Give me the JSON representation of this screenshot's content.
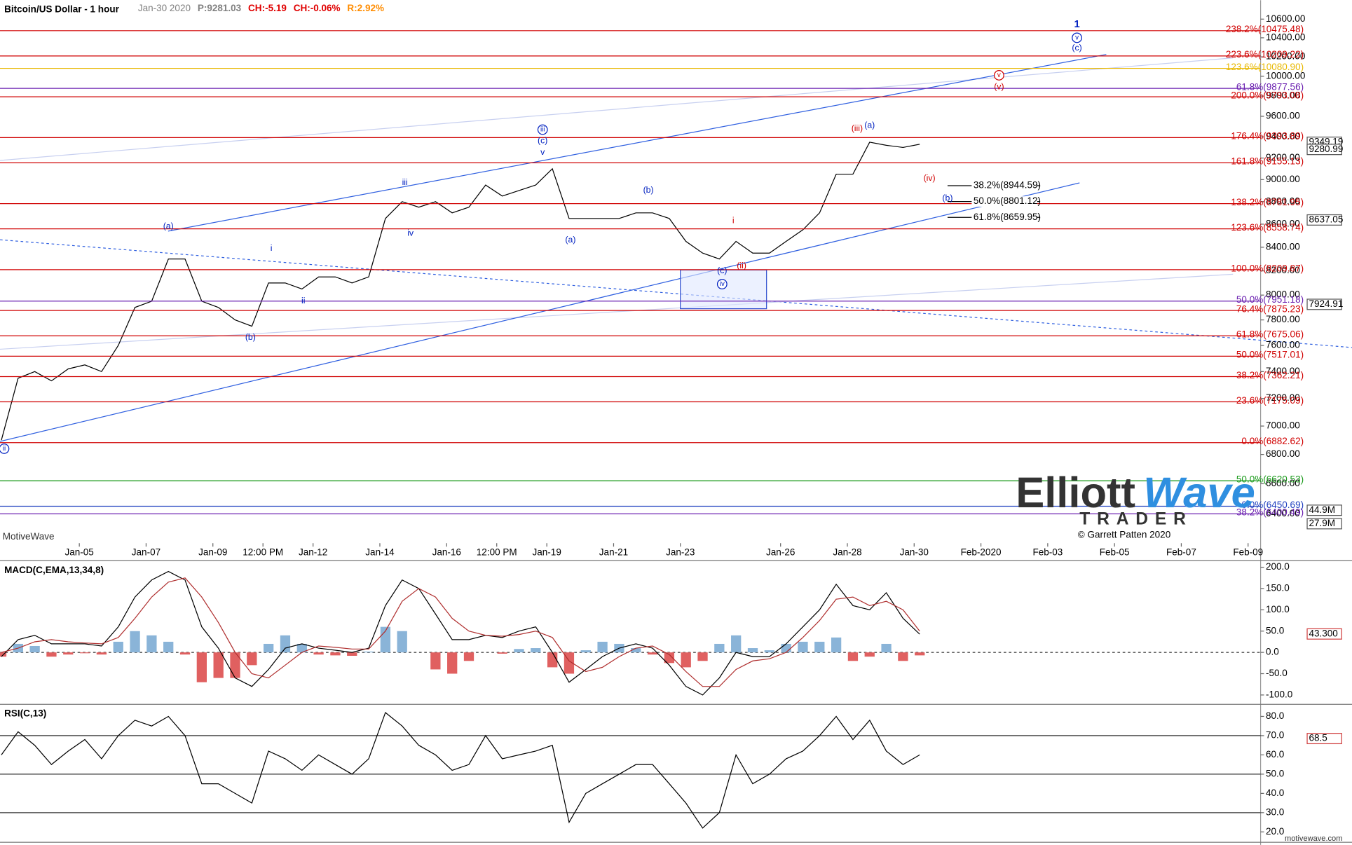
{
  "chart_data": [
    {
      "type": "line",
      "title": "Bitcoin/US Dollar - 1 hour",
      "info": [
        {
          "text": "Jan-30 2020",
          "color": "#808080"
        },
        {
          "text": "P:9281.03",
          "color": "#808080"
        },
        {
          "text": "CH:-5.19",
          "color": "#e00000"
        },
        {
          "text": "CH:-0.06%",
          "color": "#e00000"
        },
        {
          "text": "R:2.92%",
          "color": "#ff8c00"
        }
      ],
      "log_scale": true,
      "color": "#000000",
      "xlim": [
        "2020-01-02 15:00",
        "2020-02-09 09:00"
      ],
      "xticks": [
        {
          "value": "2020-01-05 00:00",
          "label": "Jan-05"
        },
        {
          "value": "2020-01-07 00:00",
          "label": "Jan-07"
        },
        {
          "value": "2020-01-09 00:00",
          "label": "Jan-09"
        },
        {
          "value": "2020-01-10 12:00",
          "label": "12:00 PM"
        },
        {
          "value": "2020-01-12 00:00",
          "label": "Jan-12"
        },
        {
          "value": "2020-01-14 00:00",
          "label": "Jan-14"
        },
        {
          "value": "2020-01-16 00:00",
          "label": "Jan-16"
        },
        {
          "value": "2020-01-17 12:00",
          "label": "12:00 PM"
        },
        {
          "value": "2020-01-19 00:00",
          "label": "Jan-19"
        },
        {
          "value": "2020-01-21 00:00",
          "label": "Jan-21"
        },
        {
          "value": "2020-01-23 00:00",
          "label": "Jan-23"
        },
        {
          "value": "2020-01-26 00:00",
          "label": "Jan-26"
        },
        {
          "value": "2020-01-28 00:00",
          "label": "Jan-28"
        },
        {
          "value": "2020-01-30 00:00",
          "label": "Jan-30"
        },
        {
          "value": "2020-02-01 00:00",
          "label": "Feb-2020"
        },
        {
          "value": "2020-02-03 00:00",
          "label": "Feb-03"
        },
        {
          "value": "2020-02-05 00:00",
          "label": "Feb-05"
        },
        {
          "value": "2020-02-07 00:00",
          "label": "Feb-07"
        },
        {
          "value": "2020-02-09 00:00",
          "label": "Feb-09"
        }
      ],
      "ylim": [
        6212,
        10675
      ],
      "yticks": [
        {
          "value": 6400,
          "label": "6400.00"
        },
        {
          "value": 6600,
          "label": "6600.00"
        },
        {
          "value": 6800,
          "label": "6800.00"
        },
        {
          "value": 7000,
          "label": "7000.00"
        },
        {
          "value": 7200,
          "label": "7200.00"
        },
        {
          "value": 7400,
          "label": "7400.00"
        },
        {
          "value": 7600,
          "label": "7600.00"
        },
        {
          "value": 7800,
          "label": "7800.00"
        },
        {
          "value": 8000,
          "label": "8000.00"
        },
        {
          "value": 8200,
          "label": "8200.00"
        },
        {
          "value": 8400,
          "label": "8400.00"
        },
        {
          "value": 8600,
          "label": "8600.00"
        },
        {
          "value": 8800,
          "label": "8800.00"
        },
        {
          "value": 9000,
          "label": "9000.00"
        },
        {
          "value": 9200,
          "label": "9200.00"
        },
        {
          "value": 9400,
          "label": "9400.00"
        },
        {
          "value": 9600,
          "label": "9600.00"
        },
        {
          "value": 9800,
          "label": "9800.00"
        },
        {
          "value": 10000,
          "label": "10000.00"
        },
        {
          "value": 10200,
          "label": "10200.00"
        },
        {
          "value": 10400,
          "label": "10400.00"
        },
        {
          "value": 10600,
          "label": "10600.00"
        }
      ],
      "x": [
        "2020-01-02 16:00",
        "2020-01-03 04:00",
        "2020-01-03 16:00",
        "2020-01-04 04:00",
        "2020-01-04 16:00",
        "2020-01-05 04:00",
        "2020-01-05 16:00",
        "2020-01-06 04:00",
        "2020-01-06 16:00",
        "2020-01-07 04:00",
        "2020-01-07 16:00",
        "2020-01-08 04:00",
        "2020-01-08 16:00",
        "2020-01-09 04:00",
        "2020-01-09 16:00",
        "2020-01-10 04:00",
        "2020-01-10 16:00",
        "2020-01-11 04:00",
        "2020-01-11 16:00",
        "2020-01-12 04:00",
        "2020-01-12 16:00",
        "2020-01-13 04:00",
        "2020-01-13 16:00",
        "2020-01-14 04:00",
        "2020-01-14 16:00",
        "2020-01-15 04:00",
        "2020-01-15 16:00",
        "2020-01-16 04:00",
        "2020-01-16 16:00",
        "2020-01-17 04:00",
        "2020-01-17 16:00",
        "2020-01-18 04:00",
        "2020-01-18 16:00",
        "2020-01-19 04:00",
        "2020-01-19 16:00",
        "2020-01-20 04:00",
        "2020-01-20 16:00",
        "2020-01-21 04:00",
        "2020-01-21 16:00",
        "2020-01-22 04:00",
        "2020-01-22 16:00",
        "2020-01-23 04:00",
        "2020-01-23 16:00",
        "2020-01-24 04:00",
        "2020-01-24 16:00",
        "2020-01-25 04:00",
        "2020-01-25 16:00",
        "2020-01-26 04:00",
        "2020-01-26 16:00",
        "2020-01-27 04:00",
        "2020-01-27 16:00",
        "2020-01-28 04:00",
        "2020-01-28 16:00",
        "2020-01-29 04:00",
        "2020-01-29 16:00",
        "2020-01-30 04:00"
      ],
      "values": [
        6900,
        7350,
        7400,
        7330,
        7420,
        7450,
        7400,
        7600,
        7900,
        7950,
        8300,
        8300,
        7950,
        7900,
        7800,
        7750,
        8100,
        8100,
        8050,
        8150,
        8150,
        8100,
        8150,
        8650,
        8800,
        8750,
        8800,
        8700,
        8750,
        8950,
        8850,
        8900,
        8950,
        9100,
        8650,
        8650,
        8650,
        8650,
        8700,
        8700,
        8650,
        8450,
        8350,
        8300,
        8450,
        8350,
        8350,
        8450,
        8550,
        8700,
        9050,
        9050,
        9350,
        9320,
        9300,
        9330
      ],
      "hlines": [
        {
          "value": 10475.48,
          "label": "238.2%(10475.48)",
          "color": "#d00000"
        },
        {
          "value": 10209.22,
          "label": "223.6%(10209.22)",
          "color": "#d00000"
        },
        {
          "value": 10080.9,
          "label": "123.6%(10080.90)",
          "color": "#e8b800"
        },
        {
          "value": 9877.56,
          "label": "61.8%(9877.56)",
          "color": "#6a1fb0"
        },
        {
          "value": 9793.08,
          "label": "200.0%(9793.08)",
          "color": "#d00000"
        },
        {
          "value": 9393.89,
          "label": "176.4%(9393.89)",
          "color": "#d00000"
        },
        {
          "value": 9155.13,
          "label": "161.8%(9155.13)",
          "color": "#d00000"
        },
        {
          "value": 8781.95,
          "label": "138.2%(8781.95)",
          "color": "#d00000"
        },
        {
          "value": 8558.74,
          "label": "123.6%(8558.74)",
          "color": "#d00000"
        },
        {
          "value": 8209.87,
          "label": "100.0%(8209.87)",
          "color": "#d00000"
        },
        {
          "value": 7951.18,
          "label": "50.0%(7951.18)",
          "color": "#6a1fb0"
        },
        {
          "value": 7875.23,
          "label": "76.4%(7875.23)",
          "color": "#d00000"
        },
        {
          "value": 7675.06,
          "label": "61.8%(7675.06)",
          "color": "#d00000"
        },
        {
          "value": 7517.01,
          "label": "50.0%(7517.01)",
          "color": "#d00000"
        },
        {
          "value": 7362.21,
          "label": "38.2%(7362.21)",
          "color": "#d00000"
        },
        {
          "value": 7175.09,
          "label": "23.6%(7175.09)",
          "color": "#d00000"
        },
        {
          "value": 6882.62,
          "label": "0.0%(6882.62)",
          "color": "#d00000"
        },
        {
          "value": 6620.53,
          "label": "50.0%(6620.53)",
          "color": "#1a9a1a"
        },
        {
          "value": 6450.69,
          "label": "0.0%(6450.69)",
          "color": "#2040c0"
        },
        {
          "value": 6400.49,
          "label": "38.2%(6400.49)",
          "color": "#6a1fb0"
        }
      ],
      "short_fibs": {
        "x": [
          "2020-01-31 00:00",
          "2020-02-02 18:00"
        ],
        "lines": [
          {
            "value": 8944.59,
            "label": "38.2%(8944.59)"
          },
          {
            "value": 8801.12,
            "label": "50.0%(8801.12)"
          },
          {
            "value": 8659.95,
            "label": "61.8%(8659.95)"
          }
        ]
      },
      "price_tags": [
        9349.19,
        9280.99,
        8637.05,
        7924.91
      ],
      "annotations": [
        {
          "text": "1",
          "x": "2020-02-03 21:00",
          "y": 10540,
          "color": "#0020c0",
          "bold": true
        },
        {
          "text": "v",
          "x": "2020-02-03 21:00",
          "y": 10400,
          "color": "#0020c0",
          "circled": true
        },
        {
          "text": "(c)",
          "x": "2020-02-03 21:00",
          "y": 10290,
          "color": "#0020c0"
        },
        {
          "text": "v",
          "x": "2020-02-01 13:00",
          "y": 10010,
          "color": "#d00000",
          "circled": true
        },
        {
          "text": "(v)",
          "x": "2020-02-01 13:00",
          "y": 9890,
          "color": "#d00000"
        },
        {
          "text": "(iii)",
          "x": "2020-01-28 07:00",
          "y": 9480,
          "color": "#d00000"
        },
        {
          "text": "(a)",
          "x": "2020-01-28 16:00",
          "y": 9510,
          "color": "#0020c0"
        },
        {
          "text": "(iv)",
          "x": "2020-01-30 11:00",
          "y": 9010,
          "color": "#d00000"
        },
        {
          "text": "(b)",
          "x": "2020-01-31 00:00",
          "y": 8830,
          "color": "#0020c0"
        },
        {
          "text": "iii",
          "x": "2020-01-18 21:00",
          "y": 9470,
          "color": "#0020c0",
          "circled": true
        },
        {
          "text": "(c)",
          "x": "2020-01-18 21:00",
          "y": 9360,
          "color": "#0020c0"
        },
        {
          "text": "v",
          "x": "2020-01-18 21:00",
          "y": 9250,
          "color": "#0020c0"
        },
        {
          "text": "iii",
          "x": "2020-01-14 18:00",
          "y": 8970,
          "color": "#0020c0"
        },
        {
          "text": "iv",
          "x": "2020-01-14 22:00",
          "y": 8520,
          "color": "#0020c0"
        },
        {
          "text": "(a)",
          "x": "2020-01-07 16:00",
          "y": 8580,
          "color": "#0020c0"
        },
        {
          "text": "i",
          "x": "2020-01-10 18:00",
          "y": 8390,
          "color": "#0020c0"
        },
        {
          "text": "ii",
          "x": "2020-01-11 17:00",
          "y": 7950,
          "color": "#0020c0"
        },
        {
          "text": "(b)",
          "x": "2020-01-10 03:00",
          "y": 7660,
          "color": "#0020c0"
        },
        {
          "text": "(b)",
          "x": "2020-01-22 01:00",
          "y": 8900,
          "color": "#0020c0"
        },
        {
          "text": "(a)",
          "x": "2020-01-19 17:00",
          "y": 8460,
          "color": "#0020c0"
        },
        {
          "text": "i",
          "x": "2020-01-24 14:00",
          "y": 8630,
          "color": "#d00000"
        },
        {
          "text": "(ii)",
          "x": "2020-01-24 20:00",
          "y": 8240,
          "color": "#d00000"
        },
        {
          "text": "(c)",
          "x": "2020-01-24 06:00",
          "y": 8200,
          "color": "#0020c0"
        },
        {
          "text": "iv",
          "x": "2020-01-24 06:00",
          "y": 8090,
          "color": "#0020c0",
          "circled": true
        },
        {
          "text": "ii",
          "x": "2020-01-02 18:00",
          "y": 6840,
          "color": "#0020c0",
          "circled": true
        }
      ],
      "volume_axis": {
        "ylim": [
          0,
          218000000
        ],
        "ticks": [
          {
            "value": 44900000,
            "label": "44.9M"
          },
          {
            "value": 27900000,
            "label": "27.9M"
          }
        ]
      }
    },
    {
      "type": "line",
      "title": "MACD(C,EMA,13,34,8)",
      "ylim": [
        -118,
        216
      ],
      "yticks": [
        {
          "value": 200,
          "label": "200.0"
        },
        {
          "value": 150,
          "label": "150.0"
        },
        {
          "value": 100,
          "label": "100.0"
        },
        {
          "value": 50,
          "label": "50.0"
        },
        {
          "value": 0,
          "label": "0.0"
        },
        {
          "value": -50,
          "label": "-50.0"
        },
        {
          "value": -100,
          "label": "-100.0"
        }
      ],
      "dashed_zero": true,
      "series": [
        {
          "kind": "bar",
          "color": "#8ab4d8",
          "negative_color": "#e06060",
          "values": [
            -10,
            20,
            15,
            -10,
            -5,
            -2,
            -5,
            25,
            50,
            40,
            25,
            -5,
            -70,
            -60,
            -60,
            -30,
            20,
            40,
            20,
            -5,
            -7,
            -8,
            2,
            60,
            50,
            0,
            -40,
            -50,
            -20,
            0,
            -3,
            8,
            10,
            -35,
            -50,
            5,
            25,
            20,
            10,
            -5,
            -25,
            -35,
            -20,
            20,
            40,
            10,
            5,
            20,
            25,
            25,
            35,
            -20,
            -10,
            20,
            -20,
            -7
          ]
        },
        {
          "kind": "line",
          "color": "#000000",
          "values": [
            -10,
            30,
            40,
            20,
            20,
            20,
            15,
            60,
            130,
            170,
            190,
            170,
            60,
            10,
            -60,
            -80,
            -40,
            10,
            20,
            10,
            5,
            0,
            10,
            110,
            170,
            150,
            90,
            30,
            30,
            40,
            35,
            50,
            60,
            0,
            -70,
            -40,
            -10,
            10,
            20,
            10,
            -30,
            -80,
            -100,
            -60,
            0,
            -10,
            -10,
            20,
            60,
            100,
            160,
            110,
            100,
            140,
            80,
            43
          ]
        },
        {
          "kind": "line",
          "color": "#b03030",
          "values": [
            0,
            10,
            25,
            30,
            25,
            22,
            20,
            35,
            80,
            130,
            165,
            175,
            130,
            70,
            0,
            -50,
            -60,
            -30,
            0,
            15,
            12,
            8,
            8,
            50,
            120,
            150,
            130,
            80,
            50,
            40,
            38,
            42,
            50,
            35,
            -20,
            -45,
            -35,
            -10,
            10,
            15,
            -5,
            -45,
            -80,
            -80,
            -40,
            -20,
            -15,
            0,
            35,
            75,
            125,
            130,
            110,
            120,
            100,
            50
          ]
        }
      ],
      "tag": {
        "value": 43.3,
        "label": "43.300"
      }
    },
    {
      "type": "line",
      "title": "RSI(C,13)",
      "ylim": [
        15.5,
        85.8
      ],
      "yticks": [
        {
          "value": 80,
          "label": "80.0"
        },
        {
          "value": 70,
          "label": "70.0"
        },
        {
          "value": 60,
          "label": "60.0"
        },
        {
          "value": 50,
          "label": "50.0"
        },
        {
          "value": 40,
          "label": "40.0"
        },
        {
          "value": 30,
          "label": "30.0"
        },
        {
          "value": 20,
          "label": "20.0"
        }
      ],
      "levels": [
        70,
        50,
        30
      ],
      "series": [
        {
          "kind": "line",
          "color": "#000000",
          "values": [
            60,
            72,
            65,
            55,
            62,
            68,
            58,
            70,
            78,
            75,
            80,
            70,
            45,
            45,
            40,
            35,
            62,
            58,
            52,
            60,
            55,
            50,
            58,
            82,
            75,
            65,
            60,
            52,
            55,
            70,
            58,
            60,
            62,
            65,
            25,
            40,
            45,
            50,
            55,
            55,
            45,
            35,
            22,
            30,
            60,
            45,
            50,
            58,
            62,
            70,
            80,
            68,
            78,
            62,
            55,
            60
          ]
        }
      ],
      "tag": 68.5
    }
  ],
  "watermark": {
    "brand1": "Elliott",
    "brand2": "Wave",
    "brand3": "TRADER",
    "copyright": "© Garrett Patten 2020",
    "platform": "MotiveWave",
    "site": "motivewave.com"
  }
}
